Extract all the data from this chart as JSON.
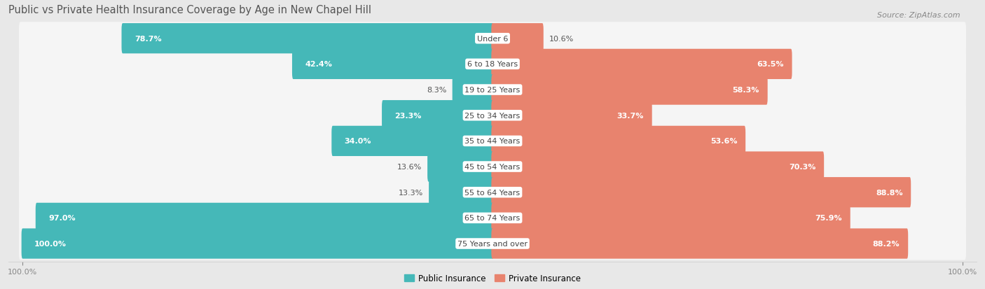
{
  "title": "Public vs Private Health Insurance Coverage by Age in New Chapel Hill",
  "source": "Source: ZipAtlas.com",
  "categories": [
    "Under 6",
    "6 to 18 Years",
    "19 to 25 Years",
    "25 to 34 Years",
    "35 to 44 Years",
    "45 to 54 Years",
    "55 to 64 Years",
    "65 to 74 Years",
    "75 Years and over"
  ],
  "public": [
    78.7,
    42.4,
    8.3,
    23.3,
    34.0,
    13.6,
    13.3,
    97.0,
    100.0
  ],
  "private": [
    10.6,
    63.5,
    58.3,
    33.7,
    53.6,
    70.3,
    88.8,
    75.9,
    88.2
  ],
  "public_color": "#45b8b8",
  "private_color": "#e8836e",
  "bg_color": "#e8e8e8",
  "bar_bg_color": "#f5f5f5",
  "bar_height": 0.68,
  "max_val": 100.0,
  "title_fontsize": 10.5,
  "source_fontsize": 8,
  "label_fontsize": 8,
  "cat_fontsize": 8,
  "legend_fontsize": 8.5,
  "pub_inside_threshold": 20,
  "priv_inside_threshold": 20
}
